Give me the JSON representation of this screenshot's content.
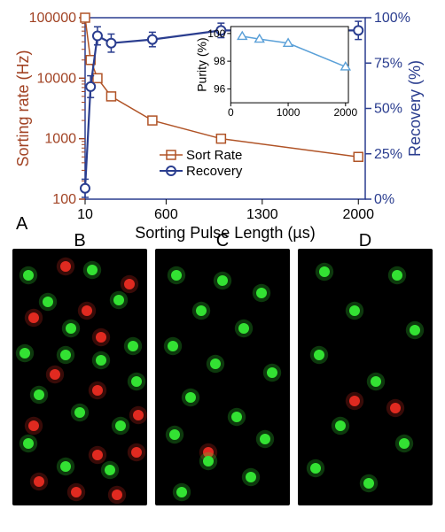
{
  "panelA": {
    "title_letter": "A",
    "xlabel": "Sorting Pulse Length (µs)",
    "xlabel_fontsize": 18,
    "ylabel_left": "Sorting rate (Hz)",
    "ylabel_right": "Recovery (%)",
    "axis_fontsize": 18,
    "tick_fontsize": 16,
    "x_axis": {
      "min": 10,
      "max": 2050,
      "ticks": [
        10,
        600,
        1300,
        2000
      ]
    },
    "left_axis": {
      "type": "log",
      "min": 100,
      "max": 100000,
      "ticks": [
        100,
        1000,
        10000,
        100000
      ],
      "color": "#a14223"
    },
    "right_axis": {
      "type": "linear",
      "min": 0,
      "max": 100,
      "ticks": [
        0,
        25,
        50,
        75,
        100
      ],
      "tick_labels": [
        "0%",
        "25%",
        "50%",
        "75%",
        "100%"
      ],
      "color": "#2a3d8f"
    },
    "colors": {
      "sortrate": "#b05326",
      "recovery": "#2a3d8f",
      "border": "#2a3d8f",
      "text": "#000000"
    },
    "legend": {
      "sortrate_label": "Sort Rate",
      "recovery_label": "Recovery",
      "fontsize": 15
    },
    "series_sortrate": {
      "marker": "square",
      "marker_size": 10,
      "line_width": 1.5,
      "points": [
        {
          "x": 10,
          "y": 100000
        },
        {
          "x": 50,
          "y": 20000
        },
        {
          "x": 100,
          "y": 10000
        },
        {
          "x": 200,
          "y": 5000
        },
        {
          "x": 500,
          "y": 2000
        },
        {
          "x": 1000,
          "y": 1000
        },
        {
          "x": 2000,
          "y": 500
        }
      ]
    },
    "series_recovery": {
      "marker": "circle",
      "marker_size": 10,
      "line_width": 2.2,
      "points": [
        {
          "x": 10,
          "y": 6,
          "err": 5
        },
        {
          "x": 50,
          "y": 62,
          "err": 6
        },
        {
          "x": 100,
          "y": 90,
          "err": 5
        },
        {
          "x": 200,
          "y": 86,
          "err": 5
        },
        {
          "x": 500,
          "y": 88,
          "err": 4
        },
        {
          "x": 1000,
          "y": 93,
          "err": 4
        },
        {
          "x": 2000,
          "y": 93,
          "err": 5
        }
      ]
    },
    "inset": {
      "xlabel_ticks": [
        0,
        1000,
        2000
      ],
      "ylabel": "Purity (%)",
      "ylabel_fontsize": 14,
      "tick_fontsize": 12,
      "xlim": [
        0,
        2050
      ],
      "ylim": [
        95,
        100.5
      ],
      "yticks": [
        96,
        98,
        100
      ],
      "color": "#5aa0d8",
      "marker": "triangle",
      "line_width": 1.5,
      "points": [
        {
          "x": 200,
          "y": 99.8
        },
        {
          "x": 500,
          "y": 99.6
        },
        {
          "x": 1000,
          "y": 99.3
        },
        {
          "x": 2000,
          "y": 97.6
        }
      ]
    }
  },
  "panelB": {
    "letter": "B",
    "background": "#000000",
    "dot_radius": 6,
    "colors": {
      "green": "#33e233",
      "red": "#e02a20"
    },
    "green_dots": [
      [
        18,
        30
      ],
      [
        90,
        24
      ],
      [
        40,
        60
      ],
      [
        120,
        58
      ],
      [
        66,
        90
      ],
      [
        14,
        118
      ],
      [
        100,
        126
      ],
      [
        140,
        150
      ],
      [
        30,
        165
      ],
      [
        76,
        185
      ],
      [
        122,
        200
      ],
      [
        18,
        220
      ],
      [
        60,
        246
      ],
      [
        136,
        110
      ],
      [
        110,
        250
      ],
      [
        60,
        120
      ]
    ],
    "red_dots": [
      [
        60,
        20
      ],
      [
        132,
        40
      ],
      [
        24,
        78
      ],
      [
        84,
        70
      ],
      [
        48,
        142
      ],
      [
        96,
        160
      ],
      [
        24,
        200
      ],
      [
        140,
        230
      ],
      [
        96,
        233
      ],
      [
        30,
        263
      ],
      [
        72,
        275
      ],
      [
        118,
        278
      ],
      [
        142,
        188
      ],
      [
        100,
        100
      ]
    ]
  },
  "panelC": {
    "letter": "C",
    "background": "#000000",
    "dot_radius": 6,
    "colors": {
      "green": "#33e233",
      "red": "#e02a20"
    },
    "green_dots": [
      [
        24,
        30
      ],
      [
        76,
        36
      ],
      [
        120,
        50
      ],
      [
        52,
        70
      ],
      [
        100,
        90
      ],
      [
        20,
        110
      ],
      [
        68,
        130
      ],
      [
        132,
        140
      ],
      [
        40,
        168
      ],
      [
        92,
        190
      ],
      [
        22,
        210
      ],
      [
        124,
        215
      ],
      [
        60,
        240
      ],
      [
        108,
        258
      ],
      [
        30,
        275
      ]
    ],
    "red_dots": [
      [
        60,
        230
      ]
    ]
  },
  "panelD": {
    "letter": "D",
    "background": "#000000",
    "dot_radius": 6,
    "colors": {
      "green": "#33e233",
      "red": "#e02a20"
    },
    "green_dots": [
      [
        30,
        26
      ],
      [
        112,
        30
      ],
      [
        64,
        70
      ],
      [
        132,
        92
      ],
      [
        24,
        120
      ],
      [
        88,
        150
      ],
      [
        48,
        200
      ],
      [
        120,
        220
      ],
      [
        20,
        248
      ],
      [
        80,
        265
      ]
    ],
    "red_dots": [
      [
        64,
        172
      ],
      [
        110,
        180
      ]
    ]
  }
}
